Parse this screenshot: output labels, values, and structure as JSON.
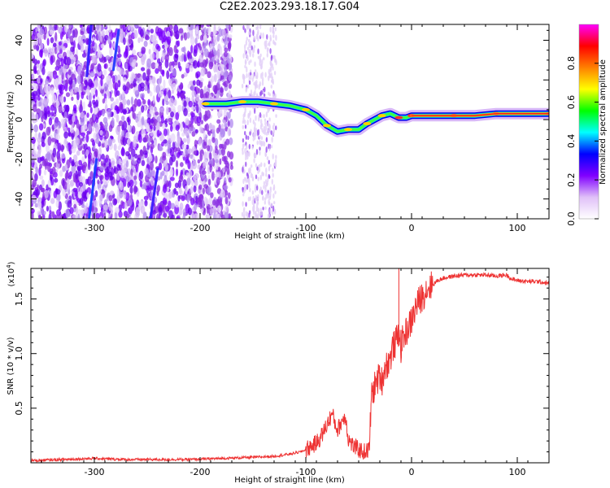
{
  "title": "C2E2.2023.293.18.17.G04",
  "chart_data": [
    {
      "type": "heatmap",
      "description_key": "spectrogram",
      "xlabel": "Height of straight line (km)",
      "ylabel": "Frequency (Hz)",
      "xlim": [
        -360,
        130
      ],
      "ylim": [
        -50,
        48
      ],
      "xticks": [
        -300,
        -200,
        -100,
        0,
        100
      ],
      "xtick_labels": [
        "-300",
        "-200",
        "-100",
        "0",
        "100"
      ],
      "yticks": [
        40,
        20,
        0,
        -20,
        -40
      ],
      "ytick_labels": [
        "40",
        "20",
        "0",
        "-20",
        "-40"
      ],
      "ridge": {
        "x": [
          -195,
          -175,
          -160,
          -145,
          -130,
          -115,
          -100,
          -90,
          -80,
          -70,
          -60,
          -50,
          -42,
          -35,
          -28,
          -20,
          -12,
          -5,
          0,
          20,
          40,
          60,
          80,
          100,
          130
        ],
        "y": [
          8,
          8,
          9,
          9,
          8,
          7,
          5,
          2,
          -3,
          -6,
          -5,
          -5,
          -2,
          0,
          2,
          3,
          1,
          1,
          2,
          2,
          2,
          2,
          3,
          3,
          3
        ]
      },
      "colorbar": {
        "label": "Normalized spectral amplitude",
        "range": [
          0,
          1
        ],
        "ticks": [
          0.0,
          0.2,
          0.4,
          0.6,
          0.8
        ],
        "tick_labels": [
          "0.0",
          "0.2",
          "0.4",
          "0.6",
          "0.8"
        ],
        "colors": [
          "#ffffff",
          "#e0c0f8",
          "#8000ff",
          "#0000ff",
          "#00ffff",
          "#00ff00",
          "#ffff00",
          "#ff8000",
          "#ff0000",
          "#ff00ff"
        ]
      }
    },
    {
      "type": "line",
      "description_key": "snr",
      "xlabel": "Height of straight line (km)",
      "ylabel": "SNR (10 * v/v)",
      "yscale_label": "(x10",
      "yscale_exp": "4",
      "yscale_close": ")",
      "xlim": [
        -360,
        130
      ],
      "ylim": [
        0,
        1.78
      ],
      "xticks": [
        -300,
        -200,
        -100,
        0,
        100
      ],
      "xtick_labels": [
        "-300",
        "-200",
        "-100",
        "0",
        "100"
      ],
      "yticks": [
        0.5,
        1.0,
        1.5
      ],
      "ytick_labels": [
        "0.5",
        "1.0",
        "1.5"
      ],
      "color": "#ee3333",
      "x": [
        -360,
        -330,
        -300,
        -270,
        -240,
        -210,
        -180,
        -150,
        -130,
        -115,
        -105,
        -100,
        -95,
        -90,
        -85,
        -80,
        -75,
        -72,
        -70,
        -65,
        -62,
        -60,
        -55,
        -50,
        -45,
        -40,
        -38,
        -35,
        -30,
        -28,
        -25,
        -22,
        -20,
        -18,
        -15,
        -12,
        -10,
        -8,
        -5,
        0,
        5,
        10,
        15,
        20,
        25,
        30,
        40,
        50,
        60,
        70,
        80,
        90,
        95,
        100,
        110,
        120,
        130
      ],
      "y": [
        0.02,
        0.03,
        0.04,
        0.03,
        0.03,
        0.03,
        0.04,
        0.05,
        0.06,
        0.08,
        0.1,
        0.12,
        0.15,
        0.18,
        0.25,
        0.35,
        0.45,
        0.35,
        0.3,
        0.4,
        0.42,
        0.22,
        0.15,
        0.12,
        0.1,
        0.12,
        0.6,
        0.7,
        0.8,
        0.75,
        0.88,
        0.92,
        0.95,
        1.05,
        1.1,
        1.2,
        1.05,
        1.15,
        1.2,
        1.3,
        1.45,
        1.52,
        1.6,
        1.63,
        1.67,
        1.69,
        1.71,
        1.72,
        1.72,
        1.72,
        1.71,
        1.72,
        1.68,
        1.67,
        1.66,
        1.66,
        1.64
      ],
      "spike": {
        "x": -12,
        "y": 1.78
      }
    }
  ]
}
